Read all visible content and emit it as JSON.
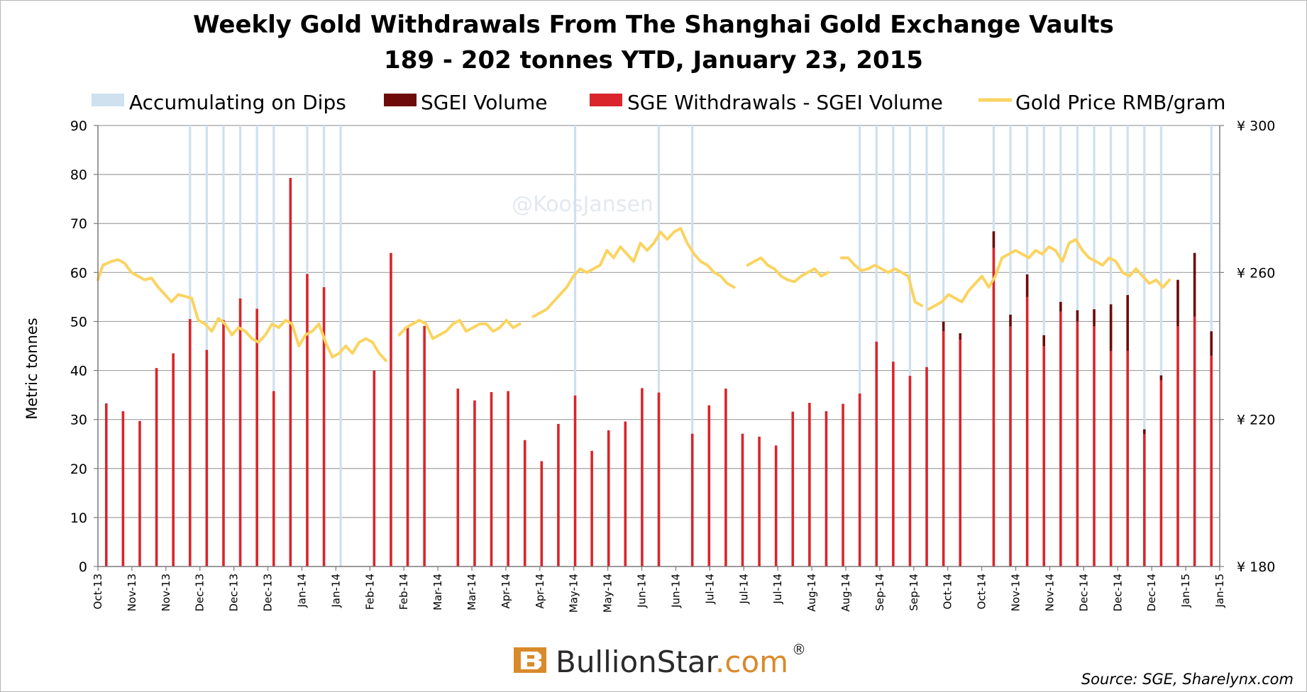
{
  "chart_data": {
    "type": "bar",
    "title": "Weekly Gold Withdrawals From The Shanghai Gold Exchange Vaults",
    "subtitle": "189 - 202 tonnes YTD, January 23, 2015",
    "ylabel": "Metric tonnes",
    "ylim": [
      0,
      90
    ],
    "yticks": [
      "0",
      "10",
      "20",
      "30",
      "40",
      "50",
      "60",
      "70",
      "80",
      "90"
    ],
    "y2lim": [
      180,
      300
    ],
    "y2ticks": [
      "¥ 180",
      "¥ 220",
      "¥ 260",
      "¥ 300"
    ],
    "y2tick_values": [
      180,
      220,
      260,
      300
    ],
    "grid": true,
    "legend_position": "top",
    "watermark": "@KoosJansen",
    "brand": {
      "name": "BullionStar",
      "suffix": ".com",
      "mark": "®"
    },
    "source": "Source: SGE, Sharelynx.com",
    "x_labels": [
      "Oct-13",
      "Nov-13",
      "Nov-13",
      "Dec-13",
      "Dec-13",
      "Dec-13",
      "Jan-14",
      "Jan-14",
      "Feb-14",
      "Feb-14",
      "Mar-14",
      "Mar-14",
      "Apr-14",
      "Apr-14",
      "May-14",
      "May-14",
      "Jun-14",
      "Jun-14",
      "Jul-14",
      "Jul-14",
      "Jul-14",
      "Aug-14",
      "Aug-14",
      "Sep-14",
      "Sep-14",
      "Oct-14",
      "Oct-14",
      "Nov-14",
      "Nov-14",
      "Dec-14",
      "Dec-14",
      "Dec-14",
      "Jan-15",
      "Jan-15"
    ],
    "legend": {
      "dips": "Accumulating on Dips",
      "sgei": "SGEI Volume",
      "sge": "SGE Withdrawals - SGEI Volume",
      "price": "Gold Price RMB/gram"
    },
    "colors": {
      "dips": "#cfe0ef",
      "sgei": "#6e0a0a",
      "sge": "#d9252b",
      "price": "#fad461",
      "grid": "#a0a0a0"
    },
    "weeks": 67,
    "bars": {
      "sge": [
        33.3,
        31.7,
        29.7,
        40.5,
        43.5,
        50.5,
        44.2,
        50.3,
        54.7,
        52.6,
        35.8,
        79.3,
        59.7,
        57.0,
        0,
        0,
        40.0,
        64.0,
        48.9,
        49.1,
        0,
        36.3,
        33.9,
        35.6,
        35.8,
        25.8,
        21.5,
        29.1,
        34.9,
        23.6,
        27.8,
        29.6,
        36.4,
        35.5,
        0,
        27.1,
        32.9,
        36.3,
        27.1,
        26.5,
        24.7,
        31.6,
        33.4,
        31.7,
        33.2,
        35.3,
        45.9,
        41.8,
        38.9,
        40.7,
        48.0,
        46.3,
        0,
        65.0,
        49.0,
        55.0,
        45.0,
        52.0,
        50.0,
        49.0,
        44.0,
        44.0,
        27.0,
        38.0,
        49.0,
        51.0,
        43.0
      ],
      "sgei": [
        0,
        0,
        0,
        0,
        0,
        0,
        0,
        0,
        0,
        0,
        0,
        0,
        0,
        0,
        0,
        0,
        0,
        0,
        0,
        0,
        0,
        0,
        0,
        0,
        0,
        0,
        0,
        0,
        0,
        0,
        0,
        0,
        0,
        0,
        0,
        0,
        0,
        0,
        0,
        0,
        0,
        0,
        0,
        0,
        0,
        0,
        0,
        0,
        0,
        0,
        2.0,
        1.3,
        0,
        3.4,
        2.4,
        4.6,
        2.2,
        2.0,
        2.3,
        3.5,
        9.5,
        11.4,
        1.0,
        1.0,
        9.5,
        13.0,
        5.0
      ]
    },
    "sgei_weeks_fix": {
      "note_free": true
    },
    "dips_weeks": [
      5,
      6,
      7,
      8,
      9,
      10,
      12,
      13,
      14,
      28,
      33,
      35,
      45,
      46,
      47,
      48,
      49,
      50,
      53,
      54,
      55,
      56,
      57,
      58,
      59,
      60,
      61,
      62,
      63,
      66
    ],
    "price_series": [
      [
        [
          0,
          258
        ],
        [
          0.3,
          262
        ],
        [
          0.8,
          263
        ],
        [
          1.2,
          263.5
        ],
        [
          1.6,
          262.5
        ],
        [
          2.0,
          260
        ],
        [
          2.4,
          259
        ],
        [
          2.8,
          258
        ],
        [
          3.2,
          258.5
        ],
        [
          3.6,
          256
        ],
        [
          4.0,
          254
        ],
        [
          4.4,
          252
        ],
        [
          4.8,
          254
        ],
        [
          5.2,
          253.5
        ],
        [
          5.6,
          253
        ],
        [
          6.0,
          247
        ],
        [
          6.4,
          246
        ],
        [
          6.8,
          244
        ],
        [
          7.2,
          247.5
        ],
        [
          7.6,
          246
        ],
        [
          8.0,
          243
        ],
        [
          8.4,
          245
        ],
        [
          8.8,
          244
        ],
        [
          9.2,
          242
        ],
        [
          9.6,
          241
        ],
        [
          10.0,
          243
        ],
        [
          10.4,
          246
        ],
        [
          10.8,
          245
        ],
        [
          11.2,
          247
        ],
        [
          11.6,
          246
        ],
        [
          12.0,
          240
        ],
        [
          12.4,
          243
        ],
        [
          12.8,
          244
        ],
        [
          13.2,
          246
        ],
        [
          13.6,
          241
        ],
        [
          14.0,
          237
        ],
        [
          14.4,
          238
        ],
        [
          14.8,
          240
        ],
        [
          15.2,
          238
        ],
        [
          15.6,
          241
        ],
        [
          16.0,
          242
        ],
        [
          16.4,
          241
        ],
        [
          16.8,
          238
        ],
        [
          17.2,
          236
        ]
      ],
      [
        [
          18.0,
          243
        ],
        [
          18.4,
          245
        ],
        [
          18.8,
          246
        ],
        [
          19.2,
          247
        ],
        [
          19.6,
          246
        ],
        [
          20.0,
          242
        ],
        [
          20.4,
          243
        ],
        [
          20.8,
          244
        ],
        [
          21.2,
          246
        ],
        [
          21.6,
          247
        ],
        [
          22.0,
          244
        ],
        [
          22.4,
          245
        ],
        [
          22.8,
          246
        ],
        [
          23.2,
          246
        ],
        [
          23.6,
          244
        ],
        [
          24.0,
          245
        ],
        [
          24.4,
          247
        ],
        [
          24.8,
          245
        ],
        [
          25.2,
          246
        ]
      ],
      [
        [
          26.0,
          248
        ],
        [
          26.4,
          249
        ],
        [
          26.8,
          250
        ],
        [
          27.2,
          252
        ],
        [
          27.6,
          254
        ],
        [
          28.0,
          256
        ],
        [
          28.4,
          259
        ],
        [
          28.8,
          261
        ],
        [
          29.2,
          260
        ],
        [
          29.6,
          261
        ],
        [
          30.0,
          262
        ],
        [
          30.4,
          266
        ],
        [
          30.8,
          264
        ],
        [
          31.2,
          267
        ],
        [
          31.6,
          265
        ],
        [
          32.0,
          263
        ],
        [
          32.4,
          268
        ],
        [
          32.8,
          266
        ],
        [
          33.2,
          268
        ],
        [
          33.6,
          271
        ],
        [
          34.0,
          269
        ],
        [
          34.4,
          271
        ],
        [
          34.8,
          272
        ],
        [
          35.2,
          268
        ],
        [
          35.6,
          265
        ],
        [
          36.0,
          263
        ],
        [
          36.4,
          262
        ],
        [
          36.8,
          260
        ],
        [
          37.2,
          259
        ],
        [
          37.6,
          257
        ],
        [
          38.0,
          256
        ]
      ],
      [
        [
          38.8,
          262
        ],
        [
          39.2,
          263
        ],
        [
          39.6,
          264
        ],
        [
          40.0,
          262
        ],
        [
          40.4,
          261
        ],
        [
          40.8,
          259
        ],
        [
          41.2,
          258
        ],
        [
          41.6,
          257.5
        ],
        [
          42.0,
          259
        ],
        [
          42.4,
          260
        ],
        [
          42.8,
          261
        ],
        [
          43.2,
          259
        ],
        [
          43.6,
          260
        ]
      ],
      [
        [
          44.4,
          264
        ],
        [
          44.8,
          264
        ],
        [
          45.2,
          262
        ],
        [
          45.6,
          260.5
        ],
        [
          46.0,
          261
        ],
        [
          46.4,
          262
        ],
        [
          46.8,
          261
        ],
        [
          47.2,
          260
        ],
        [
          47.6,
          261
        ],
        [
          48.0,
          260
        ],
        [
          48.4,
          259
        ],
        [
          48.8,
          252
        ],
        [
          49.2,
          251
        ]
      ],
      [
        [
          49.6,
          250
        ],
        [
          50.0,
          251
        ],
        [
          50.4,
          252
        ],
        [
          50.8,
          254
        ],
        [
          51.2,
          253
        ],
        [
          51.6,
          252
        ],
        [
          52.0,
          255
        ],
        [
          52.4,
          257
        ],
        [
          52.8,
          259
        ],
        [
          53.2,
          256
        ],
        [
          53.6,
          259
        ],
        [
          54.0,
          264
        ],
        [
          54.4,
          265
        ],
        [
          54.8,
          266
        ],
        [
          55.2,
          265
        ],
        [
          55.6,
          264
        ],
        [
          56.0,
          266
        ],
        [
          56.4,
          265
        ],
        [
          56.8,
          267
        ],
        [
          57.2,
          266
        ],
        [
          57.6,
          263
        ],
        [
          58.0,
          268
        ],
        [
          58.4,
          269
        ],
        [
          58.8,
          266
        ],
        [
          59.2,
          264
        ],
        [
          59.6,
          263
        ],
        [
          60.0,
          262
        ],
        [
          60.4,
          264
        ],
        [
          60.8,
          263
        ],
        [
          61.2,
          260
        ],
        [
          61.6,
          259
        ],
        [
          62.0,
          261
        ],
        [
          62.4,
          259
        ],
        [
          62.8,
          257
        ],
        [
          63.2,
          258
        ],
        [
          63.6,
          256
        ],
        [
          64.0,
          258
        ]
      ]
    ]
  }
}
